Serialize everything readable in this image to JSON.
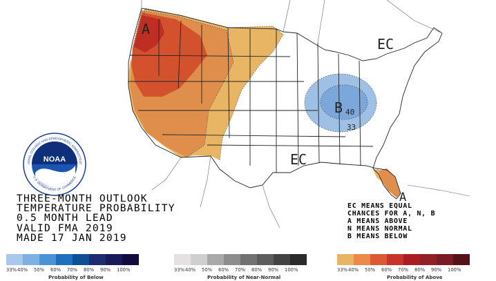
{
  "title_lines": [
    "THREE-MONTH OUTLOOK",
    "TEMPERATURE PROBABILITY",
    "0.5 MONTH LEAD",
    "VALID FMA 2019",
    "MADE 17 JAN 2019"
  ],
  "legend_note_lines": [
    "EC MEANS EQUAL",
    "CHANCES FOR A, N, B",
    "A MEANS ABOVE",
    "N MEANS NORMAL",
    "B MEANS BELOW"
  ],
  "map_labels": {
    "above_northwest": "A",
    "above_florida": "A",
    "below_ohio_valley": "B",
    "ec_northeast": "EC",
    "ec_southeast": "EC",
    "contour_40": "40",
    "contour_33": "33"
  },
  "logo": {
    "text": "NOAA",
    "ring_top": "NATIONAL OCEANIC AND ATMOSPHERIC ADMINISTRATION",
    "ring_bottom": "U.S. DEPARTMENT OF COMMERCE"
  },
  "colors": {
    "above_33": "#e8b565",
    "above_40": "#e08e4c",
    "above_50": "#d2522d",
    "above_60": "#be2e22",
    "below_33": "#9ec0e4",
    "below_40": "#7ba7da",
    "ocean": "#ffffff",
    "land": "#ffffff",
    "borders": "#222222"
  },
  "legends": {
    "below": {
      "title": "Probability of Below",
      "ticks": [
        "33%",
        "40%",
        "50%",
        "60%",
        "70%",
        "80%",
        "90%",
        "100%"
      ],
      "colors": [
        "#a9c9ec",
        "#7fb0e2",
        "#4a93d6",
        "#1f6fbf",
        "#0f4f96",
        "#1c2e6f",
        "#181a5a",
        "#120c3e"
      ]
    },
    "near_normal": {
      "title": "Probability of Near-Normal",
      "ticks": [
        "33%",
        "40%",
        "50%",
        "60%",
        "70%",
        "80%",
        "90%",
        "100%"
      ],
      "colors": [
        "#e6e1e1",
        "#d0cfcf",
        "#a9a9a9",
        "#8e8d8d",
        "#737272",
        "#5d5d5d",
        "#434343",
        "#2b2b2b"
      ]
    },
    "above": {
      "title": "Probability of Above",
      "ticks": [
        "33%",
        "40%",
        "50%",
        "60%",
        "70%",
        "80%",
        "90%",
        "100%"
      ],
      "colors": [
        "#e8b565",
        "#ee8849",
        "#dc5a33",
        "#c6342a",
        "#aa1e22",
        "#922026",
        "#7a1c23",
        "#571218"
      ]
    }
  }
}
